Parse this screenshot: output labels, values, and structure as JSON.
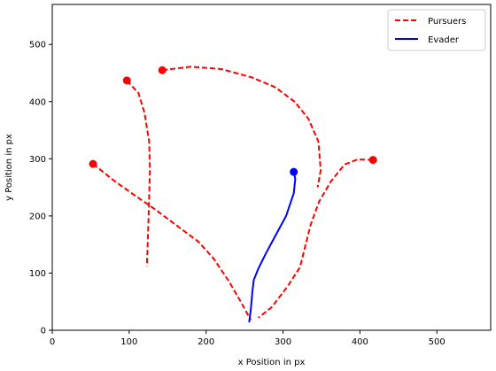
{
  "chart_data": {
    "type": "line",
    "xlabel": "x Position in px",
    "ylabel": "y Position in px",
    "xlim": [
      0,
      570
    ],
    "ylim": [
      0,
      570
    ],
    "x_ticks": [
      "0",
      "100",
      "200",
      "300",
      "400",
      "500"
    ],
    "y_ticks": [
      "0",
      "100",
      "200",
      "300",
      "400",
      "500"
    ],
    "grid": false,
    "legend_position": "top-right",
    "legend": [
      {
        "label": "Pursuers",
        "color": "#ff0000",
        "style": "dashed"
      },
      {
        "label": "Evader",
        "color": "#0000ff",
        "style": "solid"
      }
    ],
    "series": [
      {
        "name": "Pursuers",
        "color": "#ff0000",
        "style": "dashed",
        "start": [
          53,
          291
        ],
        "points": [
          [
            53,
            291
          ],
          [
            80,
            262
          ],
          [
            105,
            238
          ],
          [
            130,
            215
          ],
          [
            150,
            195
          ],
          [
            170,
            175
          ],
          [
            190,
            155
          ],
          [
            210,
            125
          ],
          [
            230,
            85
          ],
          [
            245,
            50
          ],
          [
            258,
            18
          ]
        ]
      },
      {
        "name": "Pursuers",
        "color": "#ff0000",
        "style": "dashed",
        "start": [
          97,
          437
        ],
        "points": [
          [
            97,
            437
          ],
          [
            112,
            415
          ],
          [
            120,
            380
          ],
          [
            126,
            330
          ],
          [
            127,
            280
          ],
          [
            126,
            235
          ],
          [
            125,
            190
          ],
          [
            124,
            150
          ],
          [
            123,
            112
          ]
        ]
      },
      {
        "name": "Pursuers",
        "color": "#ff0000",
        "style": "dashed",
        "start": [
          143,
          455
        ],
        "points": [
          [
            143,
            455
          ],
          [
            180,
            461
          ],
          [
            220,
            457
          ],
          [
            260,
            442
          ],
          [
            290,
            425
          ],
          [
            315,
            400
          ],
          [
            333,
            370
          ],
          [
            346,
            330
          ],
          [
            349,
            280
          ],
          [
            345,
            250
          ]
        ]
      },
      {
        "name": "Pursuers",
        "color": "#ff0000",
        "style": "dashed",
        "start": [
          417,
          298
        ],
        "points": [
          [
            417,
            298
          ],
          [
            397,
            299
          ],
          [
            380,
            290
          ],
          [
            362,
            260
          ],
          [
            347,
            225
          ],
          [
            336,
            185
          ],
          [
            322,
            110
          ],
          [
            305,
            75
          ],
          [
            285,
            40
          ],
          [
            268,
            22
          ]
        ]
      },
      {
        "name": "Evader",
        "color": "#0000ff",
        "style": "solid",
        "start": [
          314,
          277
        ],
        "points": [
          [
            314,
            277
          ],
          [
            316,
            265
          ],
          [
            314,
            240
          ],
          [
            304,
            200
          ],
          [
            290,
            165
          ],
          [
            278,
            135
          ],
          [
            268,
            108
          ],
          [
            262,
            88
          ],
          [
            260,
            65
          ],
          [
            258,
            35
          ],
          [
            256,
            14
          ]
        ]
      }
    ]
  }
}
